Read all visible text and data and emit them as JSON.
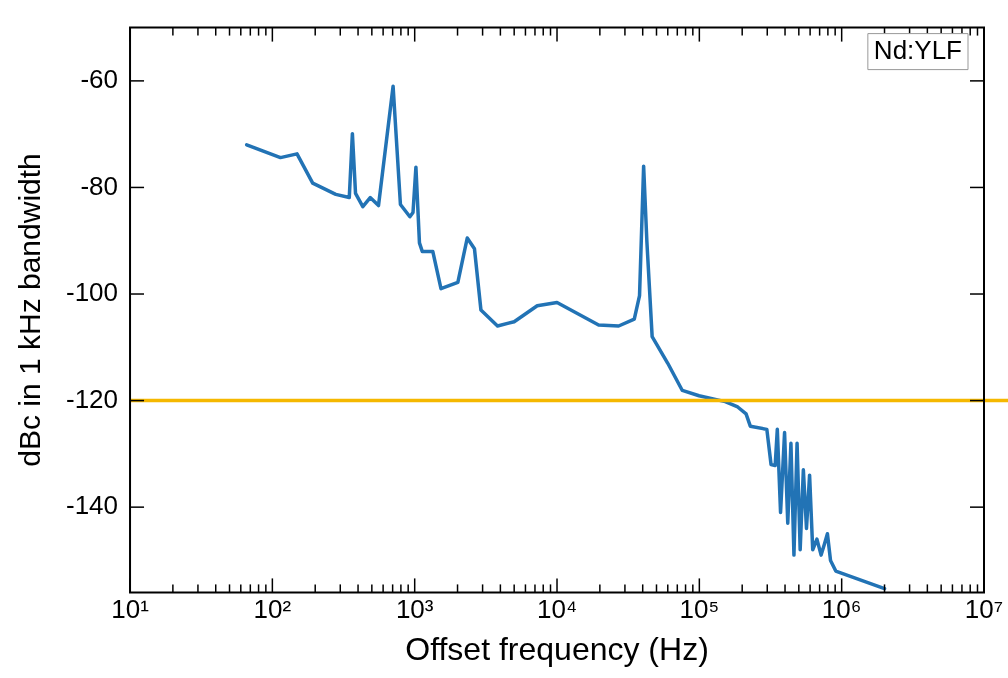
{
  "chart_data": {
    "type": "line",
    "xlabel": "Offset frequency (Hz)",
    "ylabel": "dBc in 1 kHz bandwidth",
    "annotations": [
      "Nd:YLF"
    ],
    "log": "x",
    "grid": false,
    "legend": false,
    "marker": "none",
    "line_style": "solid",
    "xlim": [
      10,
      10000000
    ],
    "ylim": [
      -156,
      -50
    ],
    "xticks": [
      {
        "value": 10,
        "label": "10¹"
      },
      {
        "value": 20,
        "label": null
      },
      {
        "value": 30,
        "label": null
      },
      {
        "value": 40,
        "label": null
      },
      {
        "value": 50,
        "label": null
      },
      {
        "value": 60,
        "label": null
      },
      {
        "value": 70,
        "label": null
      },
      {
        "value": 80,
        "label": null
      },
      {
        "value": 90,
        "label": null
      },
      {
        "value": 100,
        "label": "10²"
      },
      {
        "value": 200,
        "label": null
      },
      {
        "value": 300,
        "label": null
      },
      {
        "value": 400,
        "label": null
      },
      {
        "value": 500,
        "label": null
      },
      {
        "value": 600,
        "label": null
      },
      {
        "value": 700,
        "label": null
      },
      {
        "value": 800,
        "label": null
      },
      {
        "value": 900,
        "label": null
      },
      {
        "value": 1000,
        "label": "10³"
      },
      {
        "value": 2000,
        "label": null
      },
      {
        "value": 3000,
        "label": null
      },
      {
        "value": 4000,
        "label": null
      },
      {
        "value": 5000,
        "label": null
      },
      {
        "value": 6000,
        "label": null
      },
      {
        "value": 7000,
        "label": null
      },
      {
        "value": 8000,
        "label": null
      },
      {
        "value": 9000,
        "label": null
      },
      {
        "value": 10000,
        "label": "10⁴"
      },
      {
        "value": 20000,
        "label": null
      },
      {
        "value": 30000,
        "label": null
      },
      {
        "value": 40000,
        "label": null
      },
      {
        "value": 50000,
        "label": null
      },
      {
        "value": 60000,
        "label": null
      },
      {
        "value": 70000,
        "label": null
      },
      {
        "value": 80000,
        "label": null
      },
      {
        "value": 90000,
        "label": null
      },
      {
        "value": 100000,
        "label": "10⁵"
      },
      {
        "value": 200000,
        "label": null
      },
      {
        "value": 300000,
        "label": null
      },
      {
        "value": 400000,
        "label": null
      },
      {
        "value": 500000,
        "label": null
      },
      {
        "value": 600000,
        "label": null
      },
      {
        "value": 700000,
        "label": null
      },
      {
        "value": 800000,
        "label": null
      },
      {
        "value": 900000,
        "label": null
      },
      {
        "value": 1000000,
        "label": "10⁶"
      },
      {
        "value": 2000000,
        "label": null
      },
      {
        "value": 3000000,
        "label": null
      },
      {
        "value": 4000000,
        "label": null
      },
      {
        "value": 5000000,
        "label": null
      },
      {
        "value": 6000000,
        "label": null
      },
      {
        "value": 7000000,
        "label": null
      },
      {
        "value": 8000000,
        "label": null
      },
      {
        "value": 9000000,
        "label": null
      },
      {
        "value": 10000000,
        "label": "10⁷"
      }
    ],
    "yticks": [
      -140,
      -120,
      -100,
      -80,
      -60
    ],
    "ref_lines": [
      {
        "axis": "y",
        "value": -120,
        "color": "#f5b800"
      }
    ],
    "series": [
      {
        "color": "#2273b5",
        "x": [
          66,
          114,
          149,
          192,
          279,
          347,
          365,
          384,
          432,
          487,
          557,
          705,
          794,
          925,
          973,
          1020,
          1080,
          1130,
          1340,
          1530,
          2010,
          2340,
          2630,
          2920,
          3820,
          5000,
          7260,
          10000,
          19600,
          27100,
          34900,
          38000,
          40600,
          42800,
          46600,
          60000,
          75900,
          99500,
          152000,
          186000,
          213000,
          228000,
          298000,
          319000,
          341000,
          353000,
          372000,
          397000,
          418000,
          440000,
          462000,
          486000,
          511000,
          538000,
          566000,
          595000,
          626000,
          670000,
          717000,
          755000,
          794000,
          835000,
          909000,
          2000000
        ],
        "values": [
          -72,
          -74.4,
          -73.7,
          -79.2,
          -81.3,
          -81.9,
          -69.9,
          -81.1,
          -83.6,
          -81.9,
          -83.4,
          -61,
          -83.2,
          -85.5,
          -84.7,
          -76.2,
          -90.4,
          -92,
          -92,
          -99,
          -97.8,
          -89.5,
          -91.5,
          -103,
          -106,
          -105.2,
          -102.2,
          -101.6,
          -105.8,
          -106,
          -104.7,
          -100.3,
          -76,
          -90.2,
          -108,
          -113,
          -118.1,
          -119.1,
          -120.2,
          -121.2,
          -122.5,
          -124.8,
          -125.4,
          -132,
          -132.2,
          -125.4,
          -141,
          -126,
          -143,
          -128,
          -149,
          -128,
          -148,
          -133,
          -144,
          -134,
          -148,
          -146,
          -149,
          -147,
          -145,
          -150,
          -152,
          -155.3
        ]
      }
    ]
  }
}
